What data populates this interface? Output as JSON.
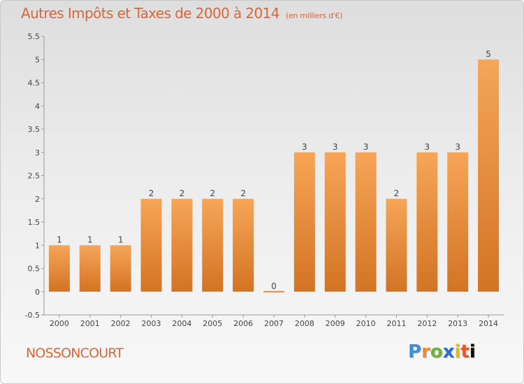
{
  "title": "Autres Impôts et Taxes de 2000 à 2014",
  "unit": "(en milliers d'€)",
  "commune": "NOSSONCOURT",
  "brand": "Proxiti",
  "colors": {
    "title": "#d8663a",
    "bar_top": "#f7a557",
    "bar_bottom": "#d27423"
  },
  "chart_data": {
    "type": "bar",
    "categories": [
      "2000",
      "2001",
      "2002",
      "2003",
      "2004",
      "2005",
      "2006",
      "2007",
      "2008",
      "2009",
      "2010",
      "2011",
      "2012",
      "2013",
      "2014"
    ],
    "values": [
      1,
      1,
      1,
      2,
      2,
      2,
      2,
      0,
      3,
      3,
      3,
      2,
      3,
      3,
      5
    ],
    "data_labels": [
      "1",
      "1",
      "1",
      "2",
      "2",
      "2",
      "2",
      "0",
      "3",
      "3",
      "3",
      "2",
      "3",
      "3",
      "5"
    ],
    "y_ticks": [
      "-0.5",
      "0",
      "0.5",
      "1",
      "1.5",
      "2",
      "2.5",
      "3",
      "3.5",
      "4",
      "4.5",
      "5",
      "5.5"
    ],
    "ylim": [
      -0.5,
      5.5
    ],
    "grid": false,
    "xlabel": "",
    "ylabel": ""
  }
}
